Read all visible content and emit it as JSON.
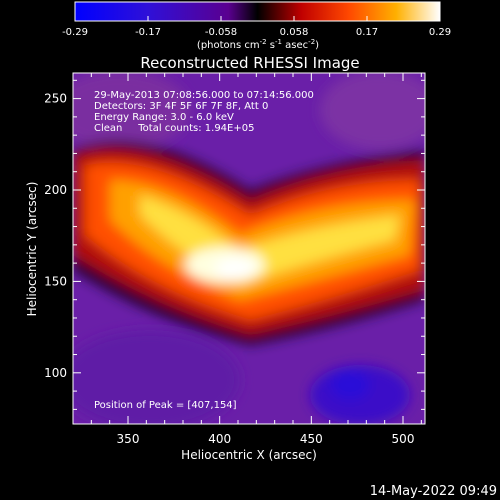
{
  "colorbar": {
    "ticks": [
      "-0.29",
      "-0.17",
      "-0.058",
      "0.058",
      "0.17",
      "0.29"
    ],
    "units_main": "(photons cm",
    "units_exp1": "-2",
    "units_mid": " s",
    "units_exp2": "-1",
    "units_end": " asec",
    "units_exp3": "-2",
    "units_close": ")",
    "range": [
      -0.29,
      0.29
    ]
  },
  "annotation": {
    "time": "29-May-2013 07:08:56.000 to 07:14:56.000",
    "detectors": "Detectors: 3F 4F 5F 6F 7F 8F, Att 0",
    "energy": "Energy Range: 3.0 - 6.0 keV",
    "clean": "Clean     Total counts: 1.94E+05",
    "peak": "Position of Peak = [407,154]"
  },
  "footer": {
    "timestamp": "14-May-2022 09:49"
  },
  "chart_data": {
    "type": "heatmap",
    "title": "Reconstructed RHESSI Image",
    "xlabel": "Heliocentric X (arcsec)",
    "ylabel": "Heliocentric Y (arcsec)",
    "xlim": [
      320,
      512
    ],
    "ylim": [
      72,
      264
    ],
    "xticks": [
      350,
      400,
      450,
      500
    ],
    "yticks": [
      100,
      150,
      200,
      250
    ],
    "peak": [
      407,
      154
    ],
    "colormap": "rhessi",
    "colormap_stops": [
      "#0000ff",
      "#3a00c8",
      "#6a1aa6",
      "#7a2890",
      "#000000",
      "#b00000",
      "#ff4000",
      "#ff9e00",
      "#ffff40",
      "#ffffff"
    ]
  }
}
